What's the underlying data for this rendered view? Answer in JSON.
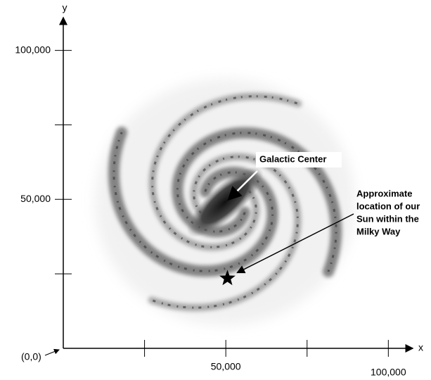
{
  "axes": {
    "x_label": "x",
    "y_label": "y",
    "origin_label": "(0,0)",
    "xlim": [
      0,
      107500
    ],
    "ylim": [
      0,
      111000
    ],
    "xticks": [
      25000,
      {
        "value": 50000,
        "label": "50,000"
      },
      75000,
      {
        "value": 100000,
        "label": "100,000"
      }
    ],
    "yticks": [
      25000,
      {
        "value": 50000,
        "label": "50,000"
      },
      75000,
      {
        "value": 100000,
        "label": "100,000"
      }
    ]
  },
  "annotations": [
    {
      "text": "Galactic Center",
      "x": 50000,
      "y": 49000
    },
    {
      "lines": [
        "Approximate",
        "location of our",
        "Sun within the",
        "Milky Way"
      ],
      "x": 50500,
      "y": 23500
    }
  ]
}
